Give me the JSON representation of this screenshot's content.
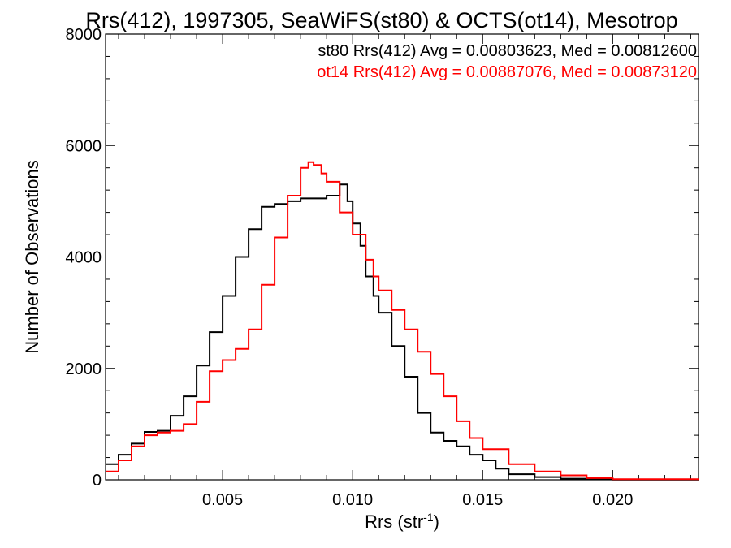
{
  "chart_data": {
    "type": "line",
    "title": "Rrs(412), 1997305, SeaWiFS(st80) & OCTS(ot14), Mesotrop",
    "xlabel": "Rrs (str",
    "xlabel_sup": "-1",
    "xlabel_close": ")",
    "ylabel": "Number of Observations",
    "xlim": [
      0.0005,
      0.0233
    ],
    "ylim": [
      0,
      8000
    ],
    "x_ticks": [
      0.005,
      0.01,
      0.015,
      0.02
    ],
    "x_tick_labels": [
      "0.005",
      "0.010",
      "0.015",
      "0.020"
    ],
    "y_ticks": [
      0,
      2000,
      4000,
      6000,
      8000
    ],
    "y_tick_labels": [
      "0",
      "2000",
      "4000",
      "6000",
      "8000"
    ],
    "grid": false,
    "legend_position": "top-right",
    "series": [
      {
        "name": "st80 Rrs(412) Avg = 0.00803623, Med = 0.00812600",
        "color": "#000000",
        "x": [
          0.0005,
          0.001,
          0.0015,
          0.002,
          0.0025,
          0.003,
          0.0035,
          0.004,
          0.0045,
          0.005,
          0.0055,
          0.006,
          0.0065,
          0.007,
          0.0075,
          0.008,
          0.0085,
          0.009,
          0.0095,
          0.0098,
          0.01,
          0.0103,
          0.0105,
          0.0108,
          0.011,
          0.0115,
          0.012,
          0.0125,
          0.013,
          0.0135,
          0.014,
          0.0145,
          0.015,
          0.0155,
          0.016,
          0.017,
          0.018,
          0.02,
          0.0233
        ],
        "values": [
          280,
          450,
          650,
          860,
          880,
          1150,
          1500,
          2050,
          2650,
          3300,
          4000,
          4500,
          4900,
          4950,
          5000,
          5050,
          5050,
          5100,
          5300,
          5000,
          4600,
          4200,
          3650,
          3300,
          3000,
          2400,
          1850,
          1200,
          850,
          700,
          600,
          450,
          350,
          200,
          100,
          50,
          20,
          5,
          0
        ]
      },
      {
        "name": "ot14 Rrs(412) Avg = 0.00887076, Med = 0.00873120",
        "color": "#ff0000",
        "x": [
          0.0005,
          0.001,
          0.0015,
          0.002,
          0.0025,
          0.003,
          0.0035,
          0.004,
          0.0045,
          0.005,
          0.0055,
          0.006,
          0.0065,
          0.007,
          0.0075,
          0.008,
          0.0083,
          0.0085,
          0.0088,
          0.009,
          0.0095,
          0.01,
          0.0105,
          0.0108,
          0.011,
          0.0115,
          0.012,
          0.0125,
          0.013,
          0.0135,
          0.014,
          0.0145,
          0.015,
          0.016,
          0.017,
          0.018,
          0.019,
          0.02,
          0.0233
        ],
        "values": [
          150,
          350,
          600,
          800,
          850,
          880,
          1000,
          1400,
          1950,
          2150,
          2350,
          2700,
          3500,
          4350,
          5100,
          5600,
          5700,
          5650,
          5500,
          5350,
          4800,
          4400,
          3950,
          3650,
          3400,
          3050,
          2700,
          2300,
          1900,
          1500,
          1050,
          750,
          550,
          280,
          150,
          80,
          30,
          10,
          0
        ]
      }
    ]
  }
}
